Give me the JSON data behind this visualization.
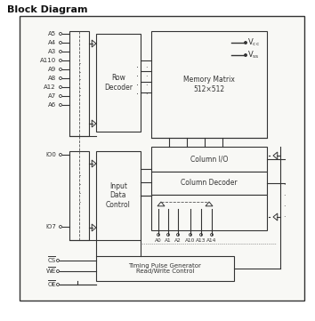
{
  "title": "Block Diagram",
  "bg_color": "#ffffff",
  "line_color": "#333333",
  "box_fill": "#f8f8f5",
  "outer_fill": "#f5f5f2",
  "memory_matrix_label": "Memory Matrix\n512×512",
  "row_decoder_label": "Row\nDecoder",
  "column_io_label": "Column I/O",
  "column_decoder_label": "Column Decoder",
  "input_data_label": "Input\nData\nControl",
  "timing_label": "Timing Pulse Generator\nRead/Write Control",
  "address_pins": [
    "A5",
    "A4",
    "A3",
    "A110",
    "A9",
    "A8",
    "A12",
    "A7",
    "A6"
  ],
  "io_pins_top": "IO0",
  "io_pins_bot": "IO7",
  "control_pins": [
    "CS",
    "WE",
    "OE"
  ],
  "col_address_pins": [
    "A0",
    "A1",
    "A2",
    "A10",
    "A13",
    "A14"
  ],
  "title_fontsize": 8,
  "label_fontsize": 5.5,
  "pin_fontsize": 5.0,
  "small_fontsize": 4.5
}
